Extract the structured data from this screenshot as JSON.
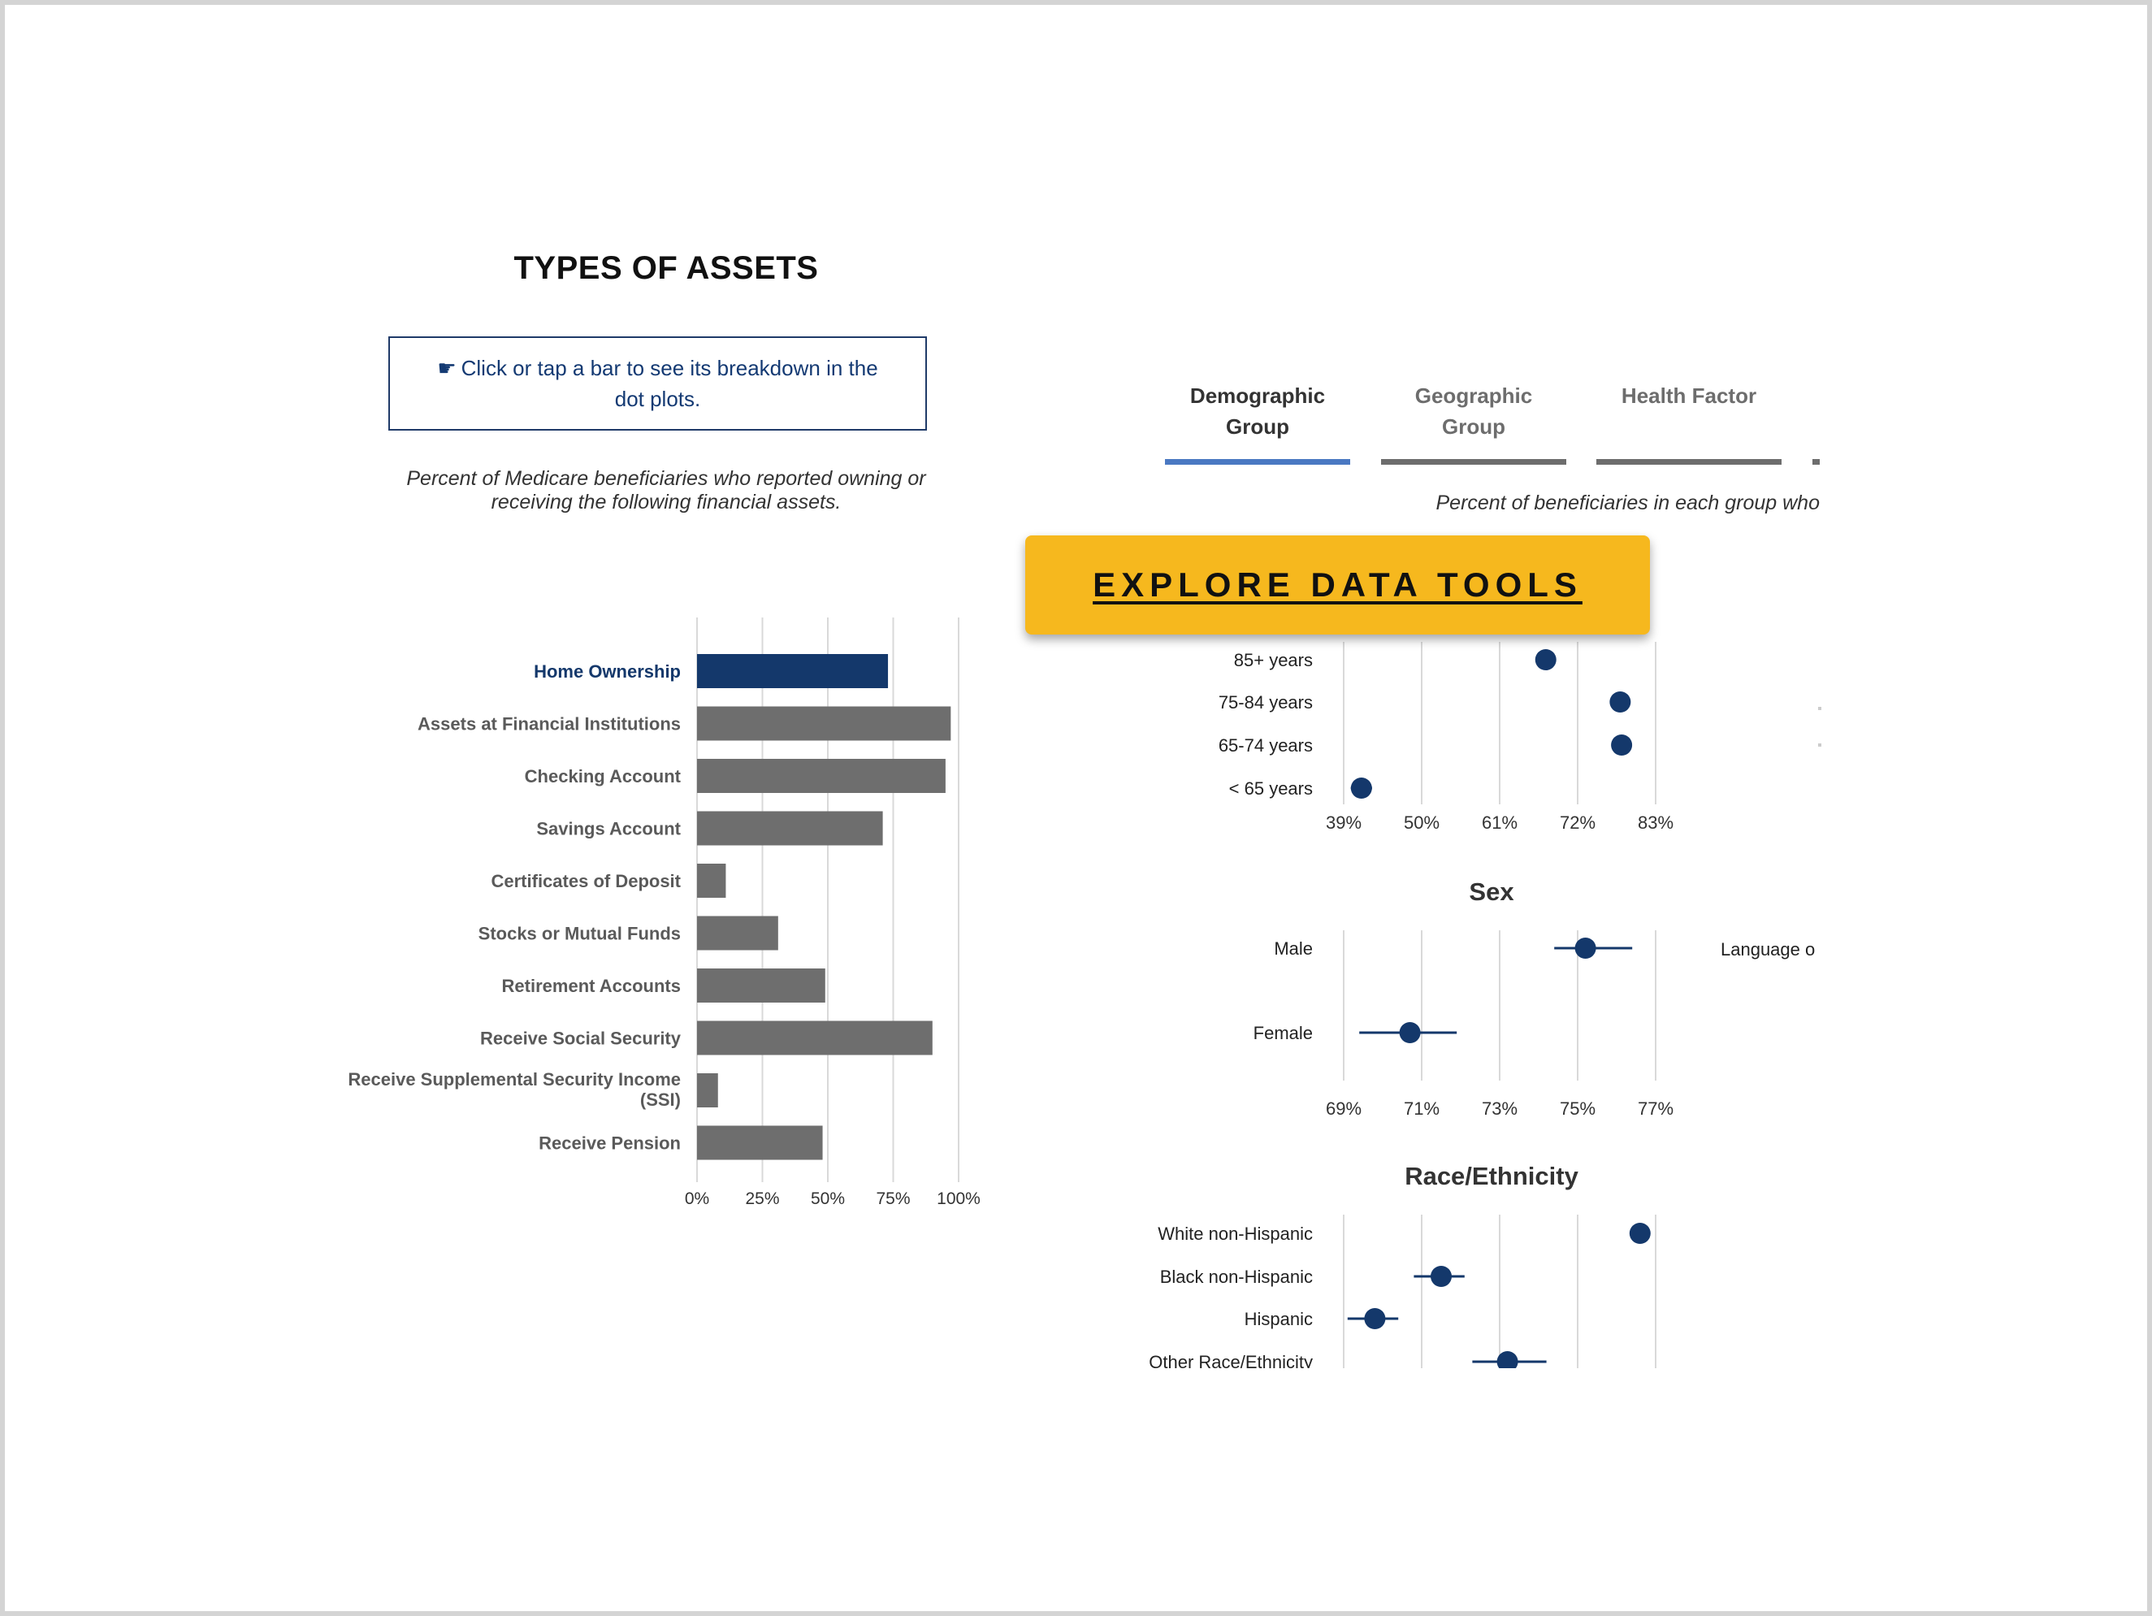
{
  "page": {
    "title": "TYPES OF ASSETS",
    "hint": "Click or tap a bar to see its breakdown in the dot plots.",
    "hint_icon": "pointer-click-icon",
    "subtitle": "Percent of Medicare beneficiaries who reported owning or receiving the following financial assets.",
    "right_subtitle": "Percent of beneficiaries in each group who",
    "cta_label": "EXPLORE DATA TOOLS",
    "cta_color": "#f6b81e",
    "tabs": [
      {
        "label": "Demographic Group",
        "active": true
      },
      {
        "label": "Geographic Group",
        "active": false
      },
      {
        "label": "Health Factor",
        "active": false
      }
    ],
    "cut_label": "Language o"
  },
  "chart_data": [
    {
      "type": "bar",
      "orientation": "horizontal",
      "categories": [
        "Home Ownership",
        "Assets at Financial Institutions",
        "Checking Account",
        "Savings Account",
        "Certificates of Deposit",
        "Stocks or Mutual Funds",
        "Retirement Accounts",
        "Receive Social Security",
        "Receive Supplemental Security Income (SSI)",
        "Receive Pension"
      ],
      "values": [
        73,
        97,
        95,
        71,
        11,
        31,
        49,
        90,
        8,
        48
      ],
      "highlight": "Home Ownership",
      "highlight_color": "#14386b",
      "bar_color": "#6e6e6e",
      "xlim": [
        0,
        100
      ],
      "x_ticks": [
        "0%",
        "25%",
        "50%",
        "75%",
        "100%"
      ]
    },
    {
      "type": "scatter",
      "title": "",
      "categories": [
        "85+ years",
        "75-84 years",
        "65-74 years",
        "< 65 years"
      ],
      "values": [
        67.5,
        78.0,
        78.2,
        41.5
      ],
      "ci": [
        [
          66.5,
          68.5
        ],
        null,
        null,
        [
          40.0,
          43.0
        ]
      ],
      "xlim": [
        39,
        83
      ],
      "x_ticks": [
        "39%",
        "50%",
        "61%",
        "72%",
        "83%"
      ],
      "point_color": "#14386b"
    },
    {
      "type": "scatter",
      "title": "Sex",
      "categories": [
        "Male",
        "Female"
      ],
      "values": [
        75.2,
        70.7
      ],
      "ci": [
        [
          74.4,
          76.4
        ],
        [
          69.4,
          71.9
        ]
      ],
      "xlim": [
        69,
        77
      ],
      "x_ticks": [
        "69%",
        "71%",
        "73%",
        "75%",
        "77%"
      ],
      "point_color": "#14386b"
    },
    {
      "type": "scatter",
      "title": "Race/Ethnicity",
      "categories": [
        "White non-Hispanic",
        "Black non-Hispanic",
        "Hispanic",
        "Other Race/Ethnicity"
      ],
      "values": [
        76.6,
        71.5,
        69.8,
        73.2
      ],
      "ci": [
        null,
        [
          70.8,
          72.1
        ],
        [
          69.1,
          70.4
        ],
        [
          72.3,
          74.2
        ]
      ],
      "xlim": [
        69,
        77
      ],
      "point_color": "#14386b"
    }
  ]
}
